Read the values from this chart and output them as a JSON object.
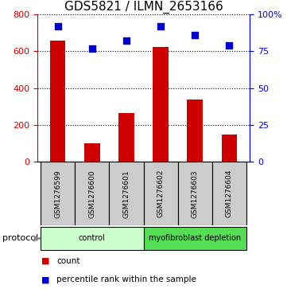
{
  "title": "GDS5821 / ILMN_2653166",
  "samples": [
    "GSM1276599",
    "GSM1276600",
    "GSM1276601",
    "GSM1276602",
    "GSM1276603",
    "GSM1276604"
  ],
  "counts": [
    660,
    100,
    265,
    625,
    340,
    150
  ],
  "percentiles": [
    92,
    77,
    82,
    92,
    86,
    79
  ],
  "ylim_left": [
    0,
    800
  ],
  "ylim_right": [
    0,
    100
  ],
  "yticks_left": [
    0,
    200,
    400,
    600,
    800
  ],
  "yticks_right": [
    0,
    25,
    50,
    75,
    100
  ],
  "yticklabels_right": [
    "0",
    "25",
    "50",
    "75",
    "100%"
  ],
  "bar_color": "#cc0000",
  "dot_color": "#0000cc",
  "bg_color": "#ffffff",
  "protocol_groups": [
    {
      "label": "control",
      "start": 0,
      "end": 3,
      "color": "#ccffcc"
    },
    {
      "label": "myofibroblast depletion",
      "start": 3,
      "end": 6,
      "color": "#55dd55"
    }
  ],
  "legend_items": [
    {
      "color": "#cc0000",
      "label": "count"
    },
    {
      "color": "#0000cc",
      "label": "percentile rank within the sample"
    }
  ],
  "protocol_label": "protocol",
  "label_color_left": "#cc0000",
  "label_color_right": "#0000cc",
  "tick_bg_gray": "#cccccc",
  "title_fontsize": 11,
  "bar_width": 0.45
}
